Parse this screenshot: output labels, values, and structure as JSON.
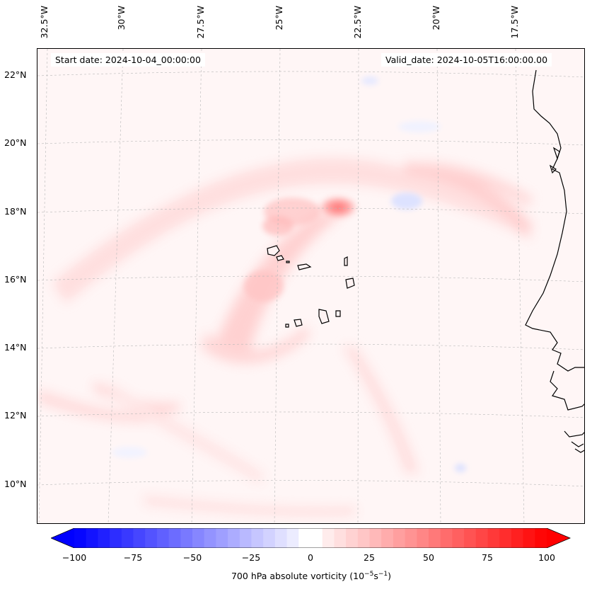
{
  "map": {
    "start_date": "Start date: 2024-10-04_00:00:00",
    "valid_date": "Valid_date: 2024-10-05T16:00:00.00",
    "lon_labels": [
      "32.5°W",
      "30°W",
      "27.5°W",
      "25°W",
      "22.5°W",
      "20°W",
      "17.5°W"
    ],
    "lat_labels": [
      "22°N",
      "20°N",
      "18°N",
      "16°N",
      "14°N",
      "12°N",
      "10°N"
    ],
    "colors": {
      "negative_max": "#0000ff",
      "positive_max": "#ff0000",
      "neutral": "#ffffff",
      "coastline": "#000000",
      "gridline": "#b0b0b0"
    }
  },
  "colorbar": {
    "ticks": [
      "−100",
      "−75",
      "−50",
      "−25",
      "0",
      "25",
      "50",
      "75",
      "100"
    ],
    "label_main": "700 hPa absolute vorticity (10",
    "label_exp1": "−5",
    "label_mid": "s",
    "label_exp2": "−1",
    "label_end": ")",
    "min": -100,
    "max": 100
  }
}
